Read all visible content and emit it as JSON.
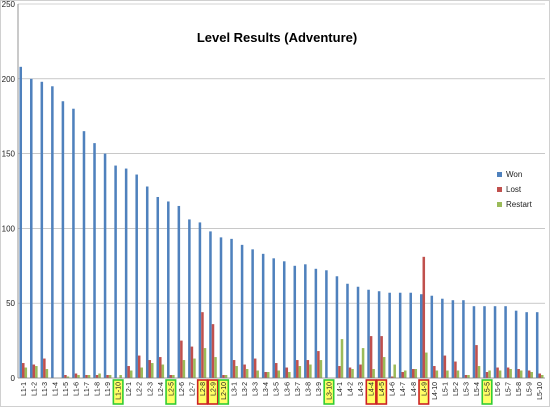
{
  "chart_data": {
    "type": "bar",
    "title": "Level Results (Adventure)",
    "xlabel": "",
    "ylabel": "",
    "ylim": [
      0,
      250
    ],
    "yticks": [
      0,
      50,
      100,
      150,
      200,
      250
    ],
    "grid": true,
    "legend_position": "right",
    "categories": [
      "L1-1",
      "L1-2",
      "L1-3",
      "L1-4",
      "L1-5",
      "L1-6",
      "L1-7",
      "L1-8",
      "L1-9",
      "L1-10",
      "L2-1",
      "L2-2",
      "L2-3",
      "L2-4",
      "L2-5",
      "L2-6",
      "L2-7",
      "L2-8",
      "L2-9",
      "L2-10",
      "L3-1",
      "L3-2",
      "L3-3",
      "L3-4",
      "L3-5",
      "L3-6",
      "L3-7",
      "L3-8",
      "L3-9",
      "L3-10",
      "L4-1",
      "L4-2",
      "L4-3",
      "L4-4",
      "L4-5",
      "L4-6",
      "L4-7",
      "L4-8",
      "L4-9",
      "L4-10",
      "L5-1",
      "L5-2",
      "L5-3",
      "L5-4",
      "L5-5",
      "L5-6",
      "L5-7",
      "L5-8",
      "L5-9",
      "L5-10"
    ],
    "highlights": [
      {
        "category": "L1-10",
        "color": "#33cc33"
      },
      {
        "category": "L2-5",
        "color": "#33cc33"
      },
      {
        "category": "L2-8",
        "color": "#cc2222"
      },
      {
        "category": "L2-9",
        "color": "#cc2222"
      },
      {
        "category": "L2-10",
        "color": "#33cc33"
      },
      {
        "category": "L3-10",
        "color": "#33cc33"
      },
      {
        "category": "L4-4",
        "color": "#cc2222"
      },
      {
        "category": "L4-5",
        "color": "#cc2222"
      },
      {
        "category": "L4-9",
        "color": "#cc2222"
      },
      {
        "category": "L5-5",
        "color": "#33cc33"
      }
    ],
    "series": [
      {
        "name": "Won",
        "color": "#4f81bd",
        "values": [
          208,
          200,
          198,
          195,
          185,
          180,
          165,
          157,
          150,
          142,
          140,
          136,
          128,
          121,
          118,
          115,
          106,
          104,
          98,
          94,
          93,
          89,
          86,
          83,
          80,
          78,
          75,
          76,
          73,
          72,
          68,
          63,
          61,
          59,
          58,
          57,
          57,
          57,
          56,
          55,
          53,
          52,
          52,
          48,
          48,
          48,
          48,
          45,
          44,
          44
        ]
      },
      {
        "name": "Lost",
        "color": "#c0504d",
        "values": [
          10,
          9,
          13,
          0,
          2,
          3,
          2,
          2,
          2,
          0,
          8,
          15,
          12,
          14,
          2,
          25,
          21,
          44,
          36,
          2,
          12,
          9,
          13,
          4,
          10,
          7,
          12,
          12,
          18,
          0,
          8,
          7,
          9,
          28,
          28,
          1,
          4,
          6,
          81,
          8,
          15,
          11,
          2,
          22,
          4,
          7,
          7,
          6,
          5,
          3
        ]
      },
      {
        "name": "Restart",
        "color": "#9bbb59",
        "values": [
          7,
          8,
          6,
          0,
          1,
          2,
          2,
          3,
          2,
          2,
          5,
          7,
          10,
          9,
          2,
          12,
          13,
          20,
          14,
          2,
          8,
          6,
          5,
          4,
          5,
          4,
          8,
          9,
          12,
          0,
          26,
          6,
          20,
          6,
          14,
          9,
          5,
          6,
          17,
          5,
          5,
          5,
          2,
          8,
          5,
          5,
          6,
          5,
          4,
          2
        ]
      }
    ]
  }
}
